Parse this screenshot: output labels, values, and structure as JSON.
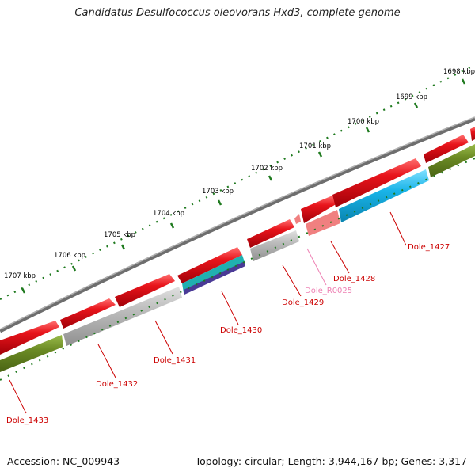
{
  "title": "Candidatus Desulfococcus oleovorans Hxd3, complete genome",
  "footer": {
    "accession": "Accession: NC_009943",
    "summary": "Topology: circular; Length: 3,944,167 bp; Genes: 3,317"
  },
  "colors": {
    "cds_forward": "#e8141b",
    "backbone": "#808080",
    "gene_gray": "#bcbcbc",
    "gene_olive": "#6b8a24",
    "gene_cyan": "#19b4e8",
    "gene_pink": "#f08080",
    "gene_teal": "#20b0b0",
    "gene_purple": "#4a3a96",
    "ticks": "#1f7a1f",
    "label_red": "#cc0000",
    "label_pink": "#ee82b4"
  },
  "kbp_labels": [
    "1698 kbp",
    "1699 kbp",
    "1700 kbp",
    "1701 kbp",
    "1702 kbp",
    "1703 kbp",
    "1704 kbp",
    "1705 kbp",
    "1706 kbp",
    "1707 kbp"
  ],
  "genes": [
    {
      "id": "Dole_1427",
      "color": "label_red"
    },
    {
      "id": "Dole_1428",
      "color": "label_red"
    },
    {
      "id": "Dole_R0025",
      "color": "label_pink"
    },
    {
      "id": "Dole_1429",
      "color": "label_red"
    },
    {
      "id": "Dole_1430",
      "color": "label_red"
    },
    {
      "id": "Dole_1431",
      "color": "label_red"
    },
    {
      "id": "Dole_1432",
      "color": "label_red"
    },
    {
      "id": "Dole_1433",
      "color": "label_red"
    }
  ]
}
